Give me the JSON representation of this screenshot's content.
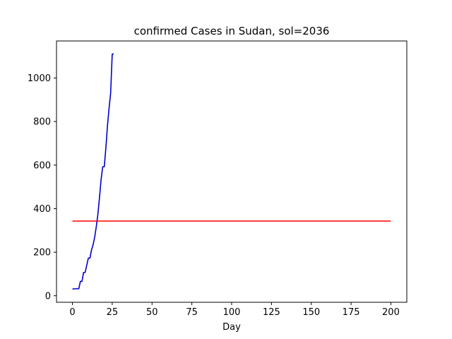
{
  "chart_data": {
    "type": "line",
    "title": "confirmed Cases in Sudan, sol=2036",
    "xlabel": "Day",
    "ylabel": "",
    "xlim": [
      -10,
      210
    ],
    "ylim": [
      -30,
      1170
    ],
    "xticks": [
      0,
      25,
      50,
      75,
      100,
      125,
      150,
      175,
      200
    ],
    "yticks": [
      0,
      200,
      400,
      600,
      800,
      1000
    ],
    "grid": false,
    "series": [
      {
        "color": "#0000cc",
        "x": [
          0,
          1,
          2,
          3,
          4,
          5,
          6,
          7,
          8,
          9,
          10,
          11,
          12,
          13,
          14,
          15,
          16,
          17,
          18,
          19,
          20,
          21,
          22,
          23,
          24,
          25,
          26
        ],
        "y": [
          30,
          32,
          32,
          32,
          32,
          66,
          66,
          107,
          107,
          140,
          173,
          173,
          210,
          235,
          270,
          318,
          375,
          450,
          533,
          592,
          592,
          678,
          780,
          860,
          930,
          1110,
          1110
        ]
      },
      {
        "color": "#ff0000",
        "x": [
          0,
          200
        ],
        "y": [
          343,
          343
        ]
      }
    ]
  }
}
